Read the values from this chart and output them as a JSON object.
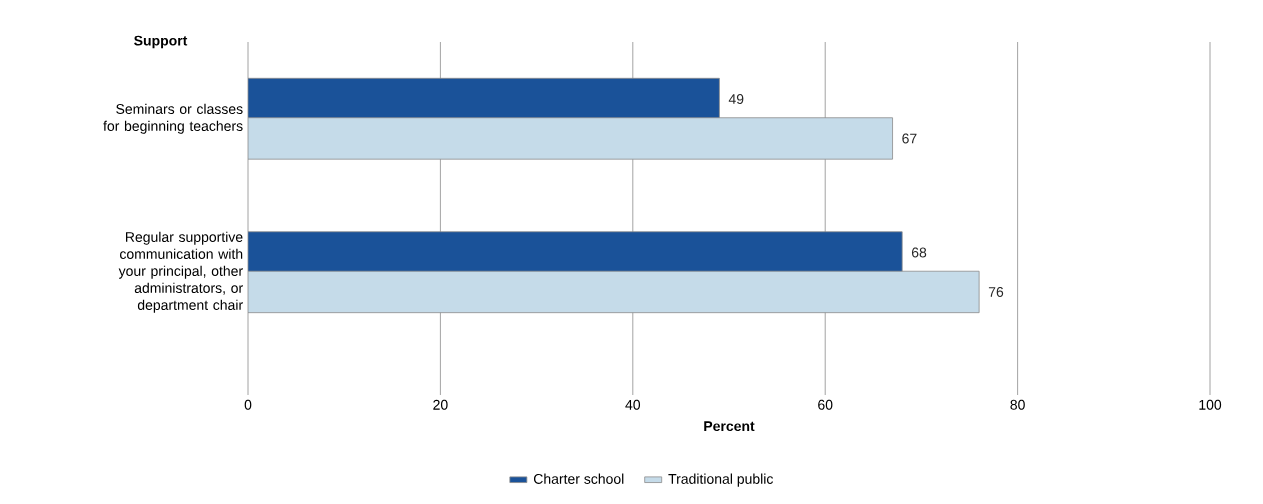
{
  "chart_data": {
    "type": "bar",
    "orientation": "horizontal",
    "ylabel": "Support",
    "xlabel": "Percent",
    "categories": [
      "Seminars or classes for beginning teachers",
      "Regular supportive communication with your principal, other administrators, or department chair"
    ],
    "series": [
      {
        "name": "Charter school",
        "color": "#1a5299",
        "values": [
          49,
          68
        ]
      },
      {
        "name": "Traditional public",
        "color": "#c5dbe9",
        "values": [
          67,
          76
        ]
      }
    ],
    "xlim": [
      0,
      100
    ],
    "xticks": [
      0,
      20,
      40,
      60,
      80,
      100
    ],
    "grid": "x",
    "legend": "bottom",
    "data_labels": true
  }
}
